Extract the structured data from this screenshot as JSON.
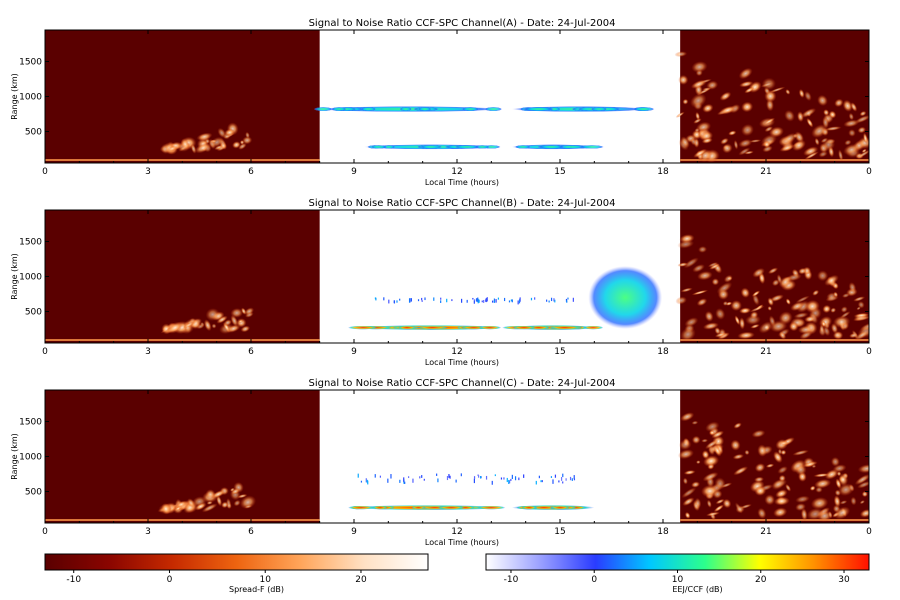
{
  "colors": {
    "night_background": "#5a0000",
    "day_background": "#ffffff",
    "spreadf_colormap": [
      "#5a0000",
      "#8a0500",
      "#c62a00",
      "#ee6410",
      "#ffa55a",
      "#ffe1c4",
      "#ffffff"
    ],
    "eej_colormap": [
      "#ffffff",
      "#9aa0ff",
      "#2a3cff",
      "#00c8ff",
      "#2cff8c",
      "#ffff00",
      "#ff9000",
      "#ff1000"
    ]
  },
  "chart_data": [
    {
      "type": "heatmap",
      "title": "Signal to Noise Ratio CCF-SPC Channel(A) - Date: 24-Jul-2004",
      "xlabel": "Local Time (hours)",
      "ylabel": "Range (km)",
      "xlim": [
        0,
        24
      ],
      "ylim": [
        50,
        1950
      ],
      "xticks": [
        "0",
        "3",
        "6",
        "9",
        "12",
        "15",
        "18",
        "21",
        "0"
      ],
      "yticks": [
        500,
        1000,
        1500
      ],
      "day_window_hours": [
        8.0,
        18.5
      ],
      "spread_f_regions": [
        {
          "t_start": 0,
          "t_end": 8,
          "description": "night background"
        },
        {
          "t_start": 3.5,
          "t_end": 6.0,
          "range_km": [
            250,
            650
          ],
          "peak_db": 18
        },
        {
          "t_start": 18.5,
          "t_end": 24,
          "range_km": [
            150,
            1650
          ],
          "peak_db": 25
        }
      ],
      "eej_ccf_layers": [
        {
          "t_start": 8.0,
          "t_end": 17.5,
          "range_center_km": 820,
          "range_width_km": 80,
          "peak_db": 12,
          "gap_hours": [
            13.2,
            13.6
          ]
        },
        {
          "t_start": 9.3,
          "t_end": 16.0,
          "range_center_km": 280,
          "range_width_km": 70,
          "peak_db": 10,
          "gap_hours": [
            13.2,
            13.6
          ]
        }
      ]
    },
    {
      "type": "heatmap",
      "title": "Signal to Noise Ratio CCF-SPC Channel(B) - Date: 24-Jul-2004",
      "xlabel": "Local Time (hours)",
      "ylabel": "Range (km)",
      "xlim": [
        0,
        24
      ],
      "ylim": [
        50,
        1950
      ],
      "xticks": [
        "0",
        "3",
        "6",
        "9",
        "12",
        "15",
        "18",
        "21",
        "0"
      ],
      "yticks": [
        500,
        1000,
        1500
      ],
      "day_window_hours": [
        8.0,
        18.5
      ],
      "spread_f_regions": [
        {
          "t_start": 0,
          "t_end": 8,
          "description": "night background"
        },
        {
          "t_start": 3.5,
          "t_end": 6.0,
          "range_km": [
            250,
            650
          ],
          "peak_db": 18
        },
        {
          "t_start": 18.5,
          "t_end": 24,
          "range_km": [
            150,
            1650
          ],
          "peak_db": 25
        }
      ],
      "eej_ccf_layers": [
        {
          "t_start": 9.2,
          "t_end": 16.0,
          "range_center_km": 270,
          "range_width_km": 70,
          "peak_db": 32,
          "gap_hours": [
            13.3,
            13.6
          ]
        },
        {
          "t_start": 9.5,
          "t_end": 15.5,
          "range_center_km": 680,
          "range_width_km": 50,
          "peak_db": 3
        },
        {
          "t_start": 16.0,
          "t_end": 17.8,
          "range_center_km": 700,
          "range_width_km": 900,
          "peak_db": 8
        }
      ]
    },
    {
      "type": "heatmap",
      "title": "Signal to Noise Ratio CCF-SPC Channel(C) - Date: 24-Jul-2004",
      "xlabel": "Local Time (hours)",
      "ylabel": "Range (km)",
      "xlim": [
        0,
        24
      ],
      "ylim": [
        50,
        1950
      ],
      "xticks": [
        "0",
        "3",
        "6",
        "9",
        "12",
        "15",
        "18",
        "21",
        "0"
      ],
      "yticks": [
        500,
        1000,
        1500
      ],
      "day_window_hours": [
        8.0,
        18.5
      ],
      "spread_f_regions": [
        {
          "t_start": 0,
          "t_end": 8,
          "description": "night background"
        },
        {
          "t_start": 3.5,
          "t_end": 6.0,
          "range_km": [
            250,
            650
          ],
          "peak_db": 20
        },
        {
          "t_start": 18.5,
          "t_end": 24,
          "range_km": [
            150,
            1750
          ],
          "peak_db": 25
        }
      ],
      "eej_ccf_layers": [
        {
          "t_start": 9.0,
          "t_end": 16.0,
          "range_center_km": 270,
          "range_width_km": 70,
          "peak_db": 32,
          "gap_hours": [
            13.3,
            13.6
          ]
        },
        {
          "t_start": 9.0,
          "t_end": 15.5,
          "range_center_km": 700,
          "range_width_km": 120,
          "peak_db": 0
        }
      ]
    }
  ],
  "colorbars": [
    {
      "label": "Spread-F (dB)",
      "range": [
        -13,
        27
      ],
      "ticks": [
        -10,
        0,
        10,
        20
      ],
      "colormap": "spreadf"
    },
    {
      "label": "EEJ/CCF (dB)",
      "range": [
        -13,
        33
      ],
      "ticks": [
        -10,
        0,
        10,
        20,
        30
      ],
      "colormap": "eej"
    }
  ]
}
